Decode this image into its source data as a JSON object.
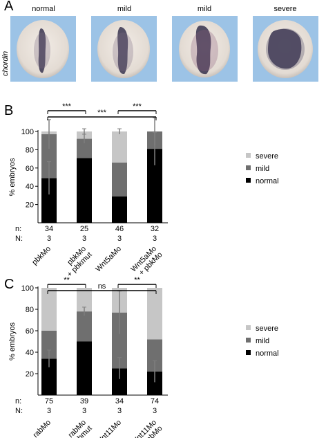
{
  "panels": {
    "a": {
      "letter": "A",
      "gene": "chordin",
      "images": [
        {
          "label": "normal",
          "phenotype": "normal"
        },
        {
          "label": "mild",
          "phenotype": "mild"
        },
        {
          "label": "mild",
          "phenotype": "mild-2"
        },
        {
          "label": "severe",
          "phenotype": "severe"
        }
      ]
    },
    "b": {
      "letter": "B"
    },
    "c": {
      "letter": "C"
    }
  },
  "colors": {
    "severe": "#c6c6c6",
    "mild": "#6f6f6f",
    "normal": "#000000",
    "background": "#9cc3e6",
    "embryo_body": "#ece6df",
    "stain": "#3a3550"
  },
  "chart_data": [
    {
      "type": "bar",
      "stacked": true,
      "panel": "B",
      "ylabel": "% embryos",
      "ylim": [
        0,
        100
      ],
      "yticks": [
        20,
        40,
        60,
        80,
        100
      ],
      "categories": [
        [
          "pbkMo"
        ],
        [
          "pbkMo",
          "+ pbkmut"
        ],
        [
          "Wnt5aMo"
        ],
        [
          "Wnt5aMo",
          "+ pbkMo"
        ]
      ],
      "series": [
        {
          "name": "normal",
          "values": [
            49,
            71,
            29,
            81
          ],
          "errors": [
            18,
            0,
            0,
            18
          ]
        },
        {
          "name": "mild",
          "values": [
            48,
            21,
            37,
            19
          ],
          "errors": [
            16,
            5,
            0,
            15
          ]
        },
        {
          "name": "severe",
          "values": [
            3,
            8,
            34,
            0
          ],
          "errors": [
            0,
            3,
            3,
            0
          ]
        }
      ],
      "legend": [
        "severe",
        "mild",
        "normal"
      ],
      "n_label": "n:",
      "N_label": "N:",
      "n": [
        "34",
        "25",
        "46",
        "32"
      ],
      "N": [
        "3",
        "3",
        "3",
        "3"
      ],
      "significance": [
        {
          "from": 0,
          "to": 1,
          "label": "***"
        },
        {
          "from": 0,
          "to": 3,
          "label": "***"
        },
        {
          "from": 2,
          "to": 3,
          "label": "***"
        }
      ]
    },
    {
      "type": "bar",
      "stacked": true,
      "panel": "C",
      "ylabel": "% embryos",
      "ylim": [
        0,
        100
      ],
      "yticks": [
        20,
        40,
        60,
        80,
        100
      ],
      "categories": [
        [
          "rabMo"
        ],
        [
          "rabMo",
          "+ rabmut"
        ],
        [
          "Wnt11Mo"
        ],
        [
          "Wnt11Mo",
          "+ rabMo"
        ]
      ],
      "series": [
        {
          "name": "normal",
          "values": [
            34,
            50,
            25,
            22
          ],
          "errors": [
            8,
            0,
            10,
            10
          ]
        },
        {
          "name": "mild",
          "values": [
            26,
            28,
            52,
            30
          ],
          "errors": [
            0,
            4,
            20,
            0
          ]
        },
        {
          "name": "severe",
          "values": [
            40,
            22,
            23,
            48
          ],
          "errors": [
            0,
            0,
            0,
            0
          ]
        }
      ],
      "legend": [
        "severe",
        "mild",
        "normal"
      ],
      "n_label": "n:",
      "N_label": "N:",
      "n": [
        "75",
        "39",
        "34",
        "74"
      ],
      "N": [
        "3",
        "3",
        "3",
        "3"
      ],
      "significance": [
        {
          "from": 0,
          "to": 1,
          "label": "**"
        },
        {
          "from": 0,
          "to": 3,
          "label": "ns"
        },
        {
          "from": 2,
          "to": 3,
          "label": "**"
        }
      ]
    }
  ]
}
